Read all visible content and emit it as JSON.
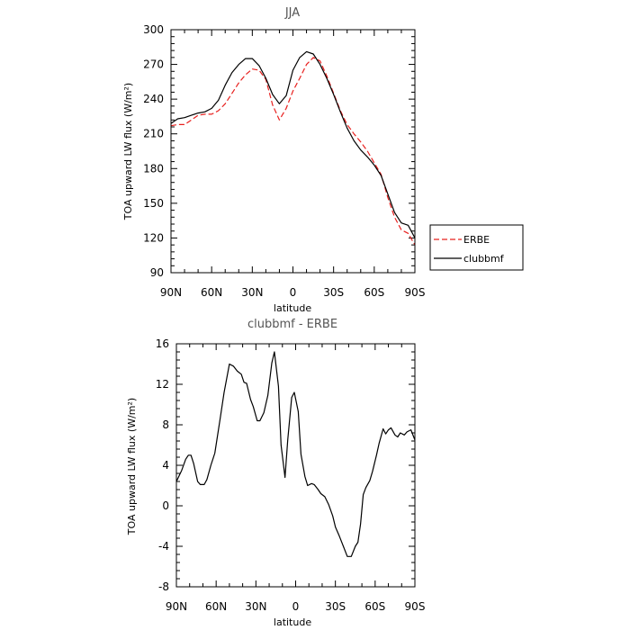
{
  "chart_data": [
    {
      "type": "line",
      "title": "JJA",
      "xlabel": "latitude",
      "ylabel": "TOA upward LW flux (W/m²)",
      "xlim": [
        90,
        -90
      ],
      "ylim": [
        90,
        300
      ],
      "x_ticks": [
        {
          "value": 90,
          "label": "90N"
        },
        {
          "value": 60,
          "label": "60N"
        },
        {
          "value": 30,
          "label": "30N"
        },
        {
          "value": 0,
          "label": "0"
        },
        {
          "value": -30,
          "label": "30S"
        },
        {
          "value": -60,
          "label": "60S"
        },
        {
          "value": -90,
          "label": "90S"
        }
      ],
      "y_ticks": [
        90,
        120,
        150,
        180,
        210,
        240,
        270,
        300
      ],
      "legend": {
        "position": "right"
      },
      "series": [
        {
          "name": "ERBE",
          "color": "#e8201e",
          "dash": "dashed",
          "x": [
            90,
            85,
            80,
            75,
            70,
            65,
            60,
            55,
            50,
            45,
            40,
            35,
            30,
            25,
            20,
            15,
            10,
            5,
            0,
            -5,
            -10,
            -15,
            -20,
            -25,
            -30,
            -35,
            -40,
            -45,
            -50,
            -55,
            -60,
            -65,
            -70,
            -75,
            -80,
            -85,
            -90
          ],
          "y": [
            217,
            218,
            218,
            222,
            226,
            227,
            227,
            230,
            236,
            245,
            254,
            261,
            266,
            265,
            257,
            235,
            222,
            232,
            247,
            258,
            270,
            276,
            273,
            260,
            245,
            230,
            218,
            210,
            203,
            195,
            185,
            175,
            155,
            138,
            127,
            124,
            114
          ]
        },
        {
          "name": "clubbmf",
          "color": "#000000",
          "dash": "solid",
          "x": [
            90,
            85,
            80,
            75,
            70,
            65,
            60,
            55,
            50,
            45,
            40,
            35,
            30,
            25,
            20,
            15,
            10,
            5,
            0,
            -5,
            -10,
            -15,
            -20,
            -25,
            -30,
            -35,
            -40,
            -45,
            -50,
            -55,
            -60,
            -65,
            -70,
            -75,
            -80,
            -85,
            -90
          ],
          "y": [
            219,
            223,
            224,
            226,
            228,
            229,
            232,
            239,
            252,
            263,
            270,
            275,
            275,
            269,
            258,
            244,
            236,
            243,
            265,
            276,
            281,
            279,
            270,
            258,
            244,
            229,
            215,
            204,
            196,
            190,
            183,
            174,
            158,
            142,
            133,
            131,
            120
          ]
        }
      ]
    },
    {
      "type": "line",
      "title": "clubbmf - ERBE",
      "xlabel": "latitude",
      "ylabel": "TOA upward LW flux (W/m²)",
      "xlim": [
        90,
        -90
      ],
      "ylim": [
        -8,
        16
      ],
      "x_ticks": [
        {
          "value": 90,
          "label": "90N"
        },
        {
          "value": 60,
          "label": "60N"
        },
        {
          "value": 30,
          "label": "30N"
        },
        {
          "value": 0,
          "label": "0"
        },
        {
          "value": -30,
          "label": "30S"
        },
        {
          "value": -60,
          "label": "60S"
        },
        {
          "value": -90,
          "label": "90S"
        }
      ],
      "y_ticks": [
        -8,
        -4,
        0,
        4,
        8,
        12,
        16
      ],
      "series": [
        {
          "color": "#000000",
          "dash": "solid",
          "x": [
            90,
            86,
            83,
            81,
            79,
            77,
            74,
            72,
            69,
            67,
            64,
            61,
            57,
            54,
            50,
            47,
            44,
            41,
            39,
            37,
            34,
            32,
            29,
            27,
            24,
            21,
            18,
            16,
            13,
            11,
            8,
            6,
            3,
            1,
            -2,
            -4,
            -7,
            -9,
            -12,
            -14,
            -17,
            -19,
            -22,
            -25,
            -28,
            -30,
            -33,
            -36,
            -39,
            -42,
            -45,
            -47,
            -49,
            -51,
            -53,
            -56,
            -58,
            -61,
            -63,
            -66,
            -68,
            -70,
            -72,
            -75,
            -77,
            -79,
            -82,
            -84,
            -87,
            -90
          ],
          "y": [
            2.4,
            3.5,
            4.6,
            5.0,
            5.0,
            4.2,
            2.4,
            2.1,
            2.1,
            2.6,
            4.0,
            5.2,
            8.6,
            11.2,
            14.0,
            13.8,
            13.3,
            13.0,
            12.2,
            12.1,
            10.5,
            9.8,
            8.4,
            8.4,
            9.2,
            10.9,
            14.1,
            15.2,
            11.8,
            6.0,
            2.8,
            6.5,
            10.7,
            11.2,
            9.3,
            5.1,
            2.9,
            2.0,
            2.2,
            2.1,
            1.6,
            1.2,
            0.9,
            0.1,
            -1.0,
            -2.1,
            -3.0,
            -4.0,
            -5.0,
            -5.0,
            -4.0,
            -3.6,
            -1.8,
            1.1,
            1.8,
            2.5,
            3.4,
            5.0,
            6.2,
            7.6,
            7.1,
            7.5,
            7.7,
            7.0,
            6.8,
            7.2,
            7.0,
            7.3,
            7.5,
            6.5
          ]
        }
      ]
    }
  ]
}
